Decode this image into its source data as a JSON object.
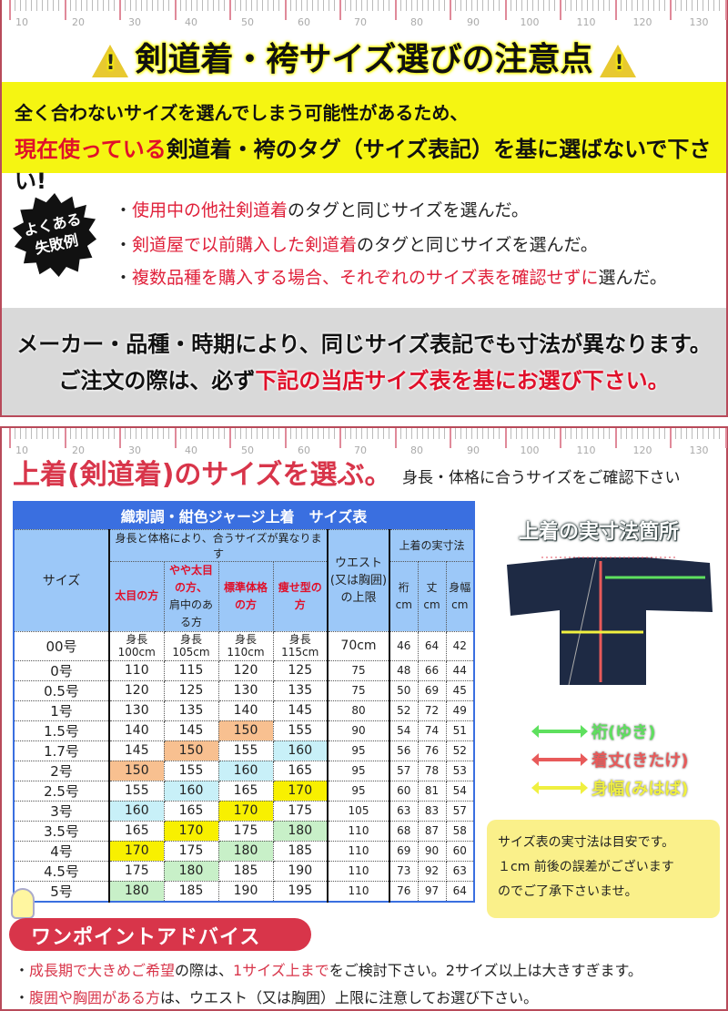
{
  "ruler_labels": [
    "10",
    "20",
    "30",
    "40",
    "50",
    "60",
    "70",
    "80",
    "90",
    "100",
    "110",
    "120",
    "130"
  ],
  "section1": {
    "title": "剣道着・袴サイズ選びの注意点",
    "warning_icon_glyph": "!",
    "warning_line1": [
      {
        "text": "全く合わないサイズを選んでしまう可能性があるため、",
        "red": false
      }
    ],
    "warning_line2": [
      {
        "text": "現在使っている",
        "red": true
      },
      {
        "text": "剣道着・袴のタグ（サイズ表記）を基に選ばないで下さい!",
        "red": false
      }
    ],
    "badge": [
      "よくある",
      "失敗例"
    ],
    "mistakes": [
      [
        {
          "text": "・",
          "red": false
        },
        {
          "text": "使用中の他社剣道着",
          "red": true
        },
        {
          "text": "のタグと同じサイズを選んだ。",
          "red": false
        }
      ],
      [
        {
          "text": "・",
          "red": false
        },
        {
          "text": "剣道屋で以前購入した剣道着",
          "red": true
        },
        {
          "text": "のタグと同じサイズを選んだ。",
          "red": false
        }
      ],
      [
        {
          "text": "・",
          "red": false
        },
        {
          "text": "複数品種を購入する場合、それぞれのサイズ表を確認せずに",
          "red": true
        },
        {
          "text": "選んだ。",
          "red": false
        }
      ]
    ],
    "notice_line1": [
      {
        "text": "メーカー・品種・時期により、同じサイズ表記でも寸法が異なります。",
        "red": false
      }
    ],
    "notice_line2": [
      {
        "text": "ご注文の際は、必ず",
        "red": false
      },
      {
        "text": "下記の当店サイズ表を基にお選び下さい。",
        "red": true
      }
    ]
  },
  "section2": {
    "title": "上着(剣道着)のサイズを選ぶ。",
    "subtitle": "身長・体格に合うサイズをご確認下さい",
    "table": {
      "caption": "織刺調・紺色ジャージ上着　サイズ表",
      "size_header": "サイズ",
      "height_group_header": "身長と体格により、合うサイズが異なります",
      "body_types": [
        {
          "red": "太目の方",
          "black": ""
        },
        {
          "red": "やや太目の方、",
          "black": "肩中のある方"
        },
        {
          "red": "標準体格の方",
          "black": ""
        },
        {
          "red": "痩せ型の方",
          "black": ""
        }
      ],
      "waist_header": "ウエスト(又は胸囲)の上限",
      "actual_group_header": "上着の実寸法",
      "actual_headers": [
        "裄 cm",
        "丈 cm",
        "身幅 cm"
      ],
      "first_row": {
        "size": "00号",
        "heights": [
          "身長 100cm",
          "身長 105cm",
          "身長 110cm",
          "身長 115cm"
        ],
        "waist": "70cm",
        "actual": [
          "46",
          "64",
          "42"
        ]
      },
      "rows": [
        {
          "size": "0号",
          "heights": [
            "110",
            "115",
            "120",
            "125"
          ],
          "waist": "75",
          "actual": [
            "48",
            "66",
            "44"
          ]
        },
        {
          "size": "0.5号",
          "heights": [
            "120",
            "125",
            "130",
            "135"
          ],
          "waist": "75",
          "actual": [
            "50",
            "69",
            "45"
          ]
        },
        {
          "size": "1号",
          "heights": [
            "130",
            "135",
            "140",
            "145"
          ],
          "waist": "80",
          "actual": [
            "52",
            "72",
            "49"
          ]
        },
        {
          "size": "1.5号",
          "heights": [
            "140",
            "145",
            "150",
            "155"
          ],
          "waist": "90",
          "actual": [
            "54",
            "74",
            "51"
          ]
        },
        {
          "size": "1.7号",
          "heights": [
            "145",
            "150",
            "155",
            "160"
          ],
          "waist": "95",
          "actual": [
            "56",
            "76",
            "52"
          ]
        },
        {
          "size": "2号",
          "heights": [
            "150",
            "155",
            "160",
            "165"
          ],
          "waist": "95",
          "actual": [
            "57",
            "78",
            "53"
          ]
        },
        {
          "size": "2.5号",
          "heights": [
            "155",
            "160",
            "165",
            "170"
          ],
          "waist": "95",
          "actual": [
            "60",
            "81",
            "54"
          ]
        },
        {
          "size": "3号",
          "heights": [
            "160",
            "165",
            "170",
            "175"
          ],
          "waist": "105",
          "actual": [
            "63",
            "83",
            "57"
          ]
        },
        {
          "size": "3.5号",
          "heights": [
            "165",
            "170",
            "175",
            "180"
          ],
          "waist": "110",
          "actual": [
            "68",
            "87",
            "58"
          ]
        },
        {
          "size": "4号",
          "heights": [
            "170",
            "175",
            "180",
            "185"
          ],
          "waist": "110",
          "actual": [
            "69",
            "90",
            "60"
          ]
        },
        {
          "size": "4.5号",
          "heights": [
            "175",
            "180",
            "185",
            "190"
          ],
          "waist": "110",
          "actual": [
            "73",
            "92",
            "63"
          ]
        },
        {
          "size": "5号",
          "heights": [
            "180",
            "185",
            "190",
            "195"
          ],
          "waist": "110",
          "actual": [
            "76",
            "97",
            "64"
          ]
        }
      ],
      "highlight_colors": {
        "150": "#f8c090",
        "160": "#c8f0f8",
        "170": "#f8f000",
        "180": "#c8f0c8"
      }
    },
    "diagram": {
      "title": "上着の実寸法箇所",
      "legend": [
        {
          "label": "裄(ゆき)",
          "color": "#5ee05e"
        },
        {
          "label": "着丈(きたけ)",
          "color": "#e85a5a"
        },
        {
          "label": "身幅(みはば)",
          "color": "#f0f040"
        }
      ],
      "note": [
        "サイズ表の実寸法は目安です。",
        "１cm 前後の誤差がございます",
        "のでご了承下さいませ。"
      ]
    },
    "advice": {
      "title": "ワンポイントアドバイス",
      "lines": [
        [
          {
            "text": "・",
            "red": false
          },
          {
            "text": "成長期で大きめご希望",
            "red": true
          },
          {
            "text": "の際は、",
            "red": false
          },
          {
            "text": "1サイズ上まで",
            "red": true
          },
          {
            "text": "をご検討下さい。2サイズ以上は大きすぎます。",
            "red": false
          }
        ],
        [
          {
            "text": "・",
            "red": false
          },
          {
            "text": "腹囲や胸囲がある方",
            "red": true
          },
          {
            "text": "は、ウエスト（又は胸囲）上限に注意してお選び下さい。",
            "red": false
          }
        ]
      ]
    }
  }
}
